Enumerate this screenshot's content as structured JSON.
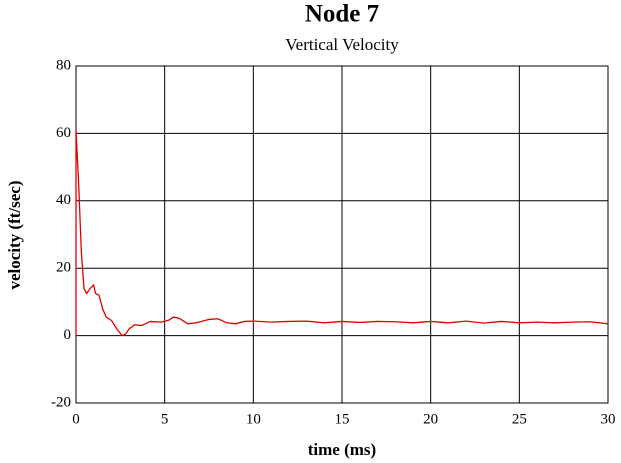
{
  "chart_data": {
    "type": "line",
    "title": "Node 7",
    "subtitle": "Vertical Velocity",
    "x_label": "time (ms)",
    "y_label": "velocity (ft/sec)",
    "xlim": [
      0,
      30
    ],
    "xticks": [
      0,
      5,
      10,
      15,
      20,
      25,
      30
    ],
    "ylim": [
      -20,
      80
    ],
    "yticks": [
      -20,
      0,
      20,
      40,
      60,
      80
    ],
    "grid": true,
    "series": [
      {
        "color": "#e00000",
        "x": [
          0,
          0,
          0.15,
          0.3,
          0.45,
          0.6,
          0.8,
          1.0,
          1.1,
          1.3,
          1.5,
          1.7,
          2.0,
          2.3,
          2.6,
          2.8,
          3.0,
          3.3,
          3.7,
          4.2,
          4.8,
          5.2,
          5.5,
          5.8,
          6.3,
          6.8,
          7.5,
          8.0,
          8.5,
          9.0,
          9.5,
          10,
          11,
          12,
          13,
          14,
          15,
          16,
          17,
          18,
          19,
          20,
          21,
          22,
          23,
          24,
          25,
          26,
          27,
          28,
          29,
          30
        ],
        "values": [
          0,
          61,
          45,
          25,
          14,
          12.5,
          14,
          15,
          12.5,
          12,
          8,
          5.5,
          4.5,
          2,
          0,
          0.5,
          2,
          3.2,
          3,
          4.2,
          4,
          4.5,
          5.5,
          5.2,
          3.5,
          3.8,
          4.8,
          5,
          3.8,
          3.5,
          4.2,
          4.3,
          4,
          4.2,
          4.3,
          3.8,
          4.2,
          3.9,
          4.2,
          4.1,
          3.8,
          4.2,
          3.8,
          4.3,
          3.7,
          4.2,
          3.8,
          4,
          3.8,
          4,
          4.1,
          3.5
        ]
      }
    ]
  }
}
